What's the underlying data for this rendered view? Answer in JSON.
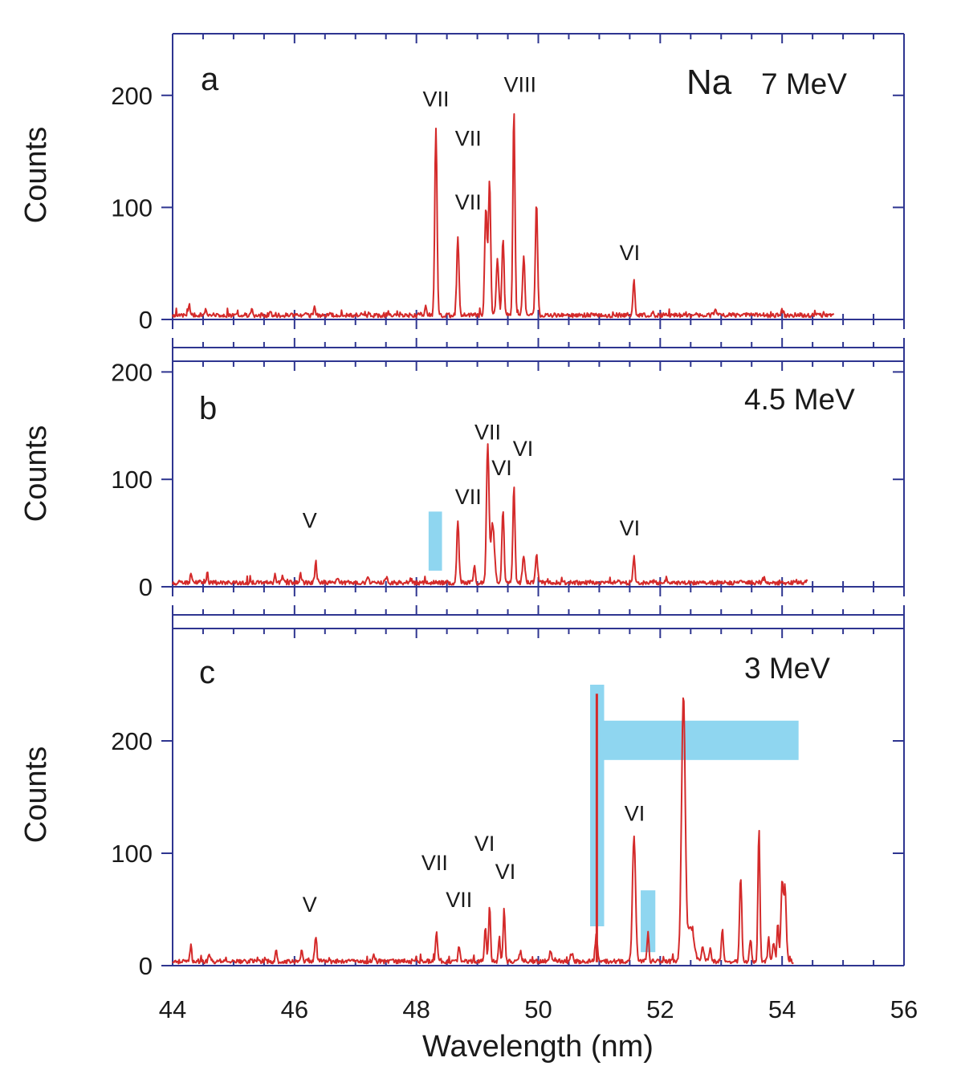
{
  "chart_data": {
    "type": "line",
    "xlabel": "Wavelength (nm)",
    "xlim": [
      44,
      56
    ],
    "x_ticks": [
      "44",
      "46",
      "48",
      "50",
      "52",
      "54",
      "56"
    ],
    "colors": {
      "trace": "#d42a2a",
      "axis": "#2e3590",
      "highlight": "#8fd6f0"
    },
    "panels": [
      {
        "id": "a",
        "letter": "a",
        "element": "Na",
        "energy": "7 MeV",
        "ylabel": "Counts",
        "ylim": [
          0,
          255
        ],
        "y_ticks": [
          "0",
          "100",
          "200"
        ],
        "baseline": 3,
        "x_end": 54.85,
        "peaks": [
          {
            "x": 44.27,
            "h": 10,
            "w": 0.012
          },
          {
            "x": 44.55,
            "h": 6,
            "w": 0.012
          },
          {
            "x": 45.3,
            "h": 4,
            "w": 0.015
          },
          {
            "x": 45.6,
            "h": 4,
            "w": 0.015
          },
          {
            "x": 46.33,
            "h": 10,
            "w": 0.012
          },
          {
            "x": 48.15,
            "h": 8,
            "w": 0.015
          },
          {
            "x": 48.32,
            "h": 167,
            "w": 0.018
          },
          {
            "x": 48.68,
            "h": 69,
            "w": 0.018
          },
          {
            "x": 49.14,
            "h": 95,
            "w": 0.02
          },
          {
            "x": 49.2,
            "h": 122,
            "w": 0.018
          },
          {
            "x": 49.33,
            "h": 50,
            "w": 0.02
          },
          {
            "x": 49.42,
            "h": 68,
            "w": 0.018
          },
          {
            "x": 49.6,
            "h": 183,
            "w": 0.017
          },
          {
            "x": 49.76,
            "h": 54,
            "w": 0.018
          },
          {
            "x": 49.97,
            "h": 102,
            "w": 0.018
          },
          {
            "x": 51.57,
            "h": 32,
            "w": 0.015
          },
          {
            "x": 52.9,
            "h": 4,
            "w": 0.02
          },
          {
            "x": 54.0,
            "h": 4,
            "w": 0.02
          }
        ],
        "labels": [
          {
            "text": "VII",
            "x": 48.32,
            "y": 190
          },
          {
            "text": "VII",
            "x": 48.85,
            "y": 98
          },
          {
            "text": "VII",
            "x": 48.85,
            "y": 155
          },
          {
            "text": "VIII",
            "x": 49.7,
            "y": 203
          },
          {
            "text": "VI",
            "x": 51.5,
            "y": 53
          }
        ],
        "highlights": []
      },
      {
        "id": "b",
        "letter": "b",
        "element": "",
        "energy": "4.5 MeV",
        "ylabel": "Counts",
        "ylim": [
          0,
          210
        ],
        "y_ticks": [
          "0",
          "100",
          "200"
        ],
        "baseline": 3,
        "x_end": 54.42,
        "peaks": [
          {
            "x": 44.3,
            "h": 10,
            "w": 0.012
          },
          {
            "x": 44.57,
            "h": 9,
            "w": 0.012
          },
          {
            "x": 45.68,
            "h": 9,
            "w": 0.014
          },
          {
            "x": 45.8,
            "h": 6,
            "w": 0.014
          },
          {
            "x": 46.1,
            "h": 8,
            "w": 0.014
          },
          {
            "x": 46.35,
            "h": 15,
            "w": 0.018
          },
          {
            "x": 46.7,
            "h": 5,
            "w": 0.015
          },
          {
            "x": 47.2,
            "h": 5,
            "w": 0.02
          },
          {
            "x": 47.5,
            "h": 5,
            "w": 0.02
          },
          {
            "x": 48.68,
            "h": 57,
            "w": 0.018
          },
          {
            "x": 48.95,
            "h": 15,
            "w": 0.015
          },
          {
            "x": 49.17,
            "h": 128,
            "w": 0.02
          },
          {
            "x": 49.25,
            "h": 55,
            "w": 0.03
          },
          {
            "x": 49.42,
            "h": 67,
            "w": 0.018
          },
          {
            "x": 49.6,
            "h": 91,
            "w": 0.017
          },
          {
            "x": 49.76,
            "h": 25,
            "w": 0.02
          },
          {
            "x": 49.97,
            "h": 26,
            "w": 0.018
          },
          {
            "x": 51.57,
            "h": 26,
            "w": 0.015
          },
          {
            "x": 52.1,
            "h": 4,
            "w": 0.02
          },
          {
            "x": 53.7,
            "h": 4,
            "w": 0.02
          }
        ],
        "labels": [
          {
            "text": "V",
            "x": 46.25,
            "y": 55
          },
          {
            "text": "VII",
            "x": 48.85,
            "y": 77
          },
          {
            "text": "VII",
            "x": 49.17,
            "y": 137
          },
          {
            "text": "VI",
            "x": 49.4,
            "y": 104
          },
          {
            "text": "VI",
            "x": 49.75,
            "y": 122
          },
          {
            "text": "VI",
            "x": 51.5,
            "y": 48
          }
        ],
        "highlights": [
          {
            "x0": 48.2,
            "x1": 48.42,
            "y0": 15,
            "y1": 70
          }
        ]
      },
      {
        "id": "c",
        "letter": "c",
        "element": "",
        "energy": "3 MeV",
        "ylabel": "Counts",
        "ylim": [
          0,
          300
        ],
        "y_ticks": [
          "0",
          "100",
          "200"
        ],
        "baseline": 3,
        "x_end": 54.2,
        "peaks": [
          {
            "x": 44.3,
            "h": 15,
            "w": 0.012
          },
          {
            "x": 44.6,
            "h": 8,
            "w": 0.015
          },
          {
            "x": 45.7,
            "h": 10,
            "w": 0.014
          },
          {
            "x": 46.12,
            "h": 11,
            "w": 0.014
          },
          {
            "x": 46.35,
            "h": 23,
            "w": 0.015
          },
          {
            "x": 47.3,
            "h": 5,
            "w": 0.02
          },
          {
            "x": 48.33,
            "h": 28,
            "w": 0.015
          },
          {
            "x": 48.7,
            "h": 14,
            "w": 0.015
          },
          {
            "x": 49.13,
            "h": 30,
            "w": 0.015
          },
          {
            "x": 49.2,
            "h": 50,
            "w": 0.015
          },
          {
            "x": 49.36,
            "h": 22,
            "w": 0.015
          },
          {
            "x": 49.44,
            "h": 47,
            "w": 0.015
          },
          {
            "x": 49.7,
            "h": 5,
            "w": 0.03
          },
          {
            "x": 50.2,
            "h": 8,
            "w": 0.02
          },
          {
            "x": 50.55,
            "h": 8,
            "w": 0.02
          },
          {
            "x": 50.95,
            "h": 24,
            "w": 0.018
          },
          {
            "x": 51.57,
            "h": 112,
            "w": 0.025
          },
          {
            "x": 51.8,
            "h": 26,
            "w": 0.015
          },
          {
            "x": 52.38,
            "h": 236,
            "w": 0.03
          },
          {
            "x": 52.5,
            "h": 30,
            "w": 0.05
          },
          {
            "x": 52.7,
            "h": 13,
            "w": 0.018
          },
          {
            "x": 52.82,
            "h": 11,
            "w": 0.018
          },
          {
            "x": 53.02,
            "h": 31,
            "w": 0.015
          },
          {
            "x": 53.32,
            "h": 75,
            "w": 0.018
          },
          {
            "x": 53.48,
            "h": 20,
            "w": 0.018
          },
          {
            "x": 53.62,
            "h": 118,
            "w": 0.016
          },
          {
            "x": 53.78,
            "h": 20,
            "w": 0.015
          },
          {
            "x": 53.86,
            "h": 18,
            "w": 0.015
          },
          {
            "x": 53.93,
            "h": 35,
            "w": 0.015
          },
          {
            "x": 54.0,
            "h": 70,
            "w": 0.02
          },
          {
            "x": 54.05,
            "h": 60,
            "w": 0.02
          }
        ],
        "labels": [
          {
            "text": "V",
            "x": 46.25,
            "y": 48
          },
          {
            "text": "VII",
            "x": 48.3,
            "y": 85
          },
          {
            "text": "VII",
            "x": 48.7,
            "y": 52
          },
          {
            "text": "VI",
            "x": 49.12,
            "y": 102
          },
          {
            "text": "VI",
            "x": 49.46,
            "y": 77
          },
          {
            "text": "VI",
            "x": 51.58,
            "y": 129
          }
        ],
        "highlights": [
          {
            "x0": 50.85,
            "x1": 51.08,
            "y0": 35,
            "y1": 250
          },
          {
            "x0": 51.02,
            "x1": 54.27,
            "y0": 183,
            "y1": 218
          },
          {
            "x0": 51.68,
            "x1": 51.92,
            "y0": 12,
            "y1": 67
          }
        ],
        "overlay_lines": [
          {
            "x": 50.96,
            "y0": 3,
            "y1": 242
          }
        ]
      }
    ]
  }
}
